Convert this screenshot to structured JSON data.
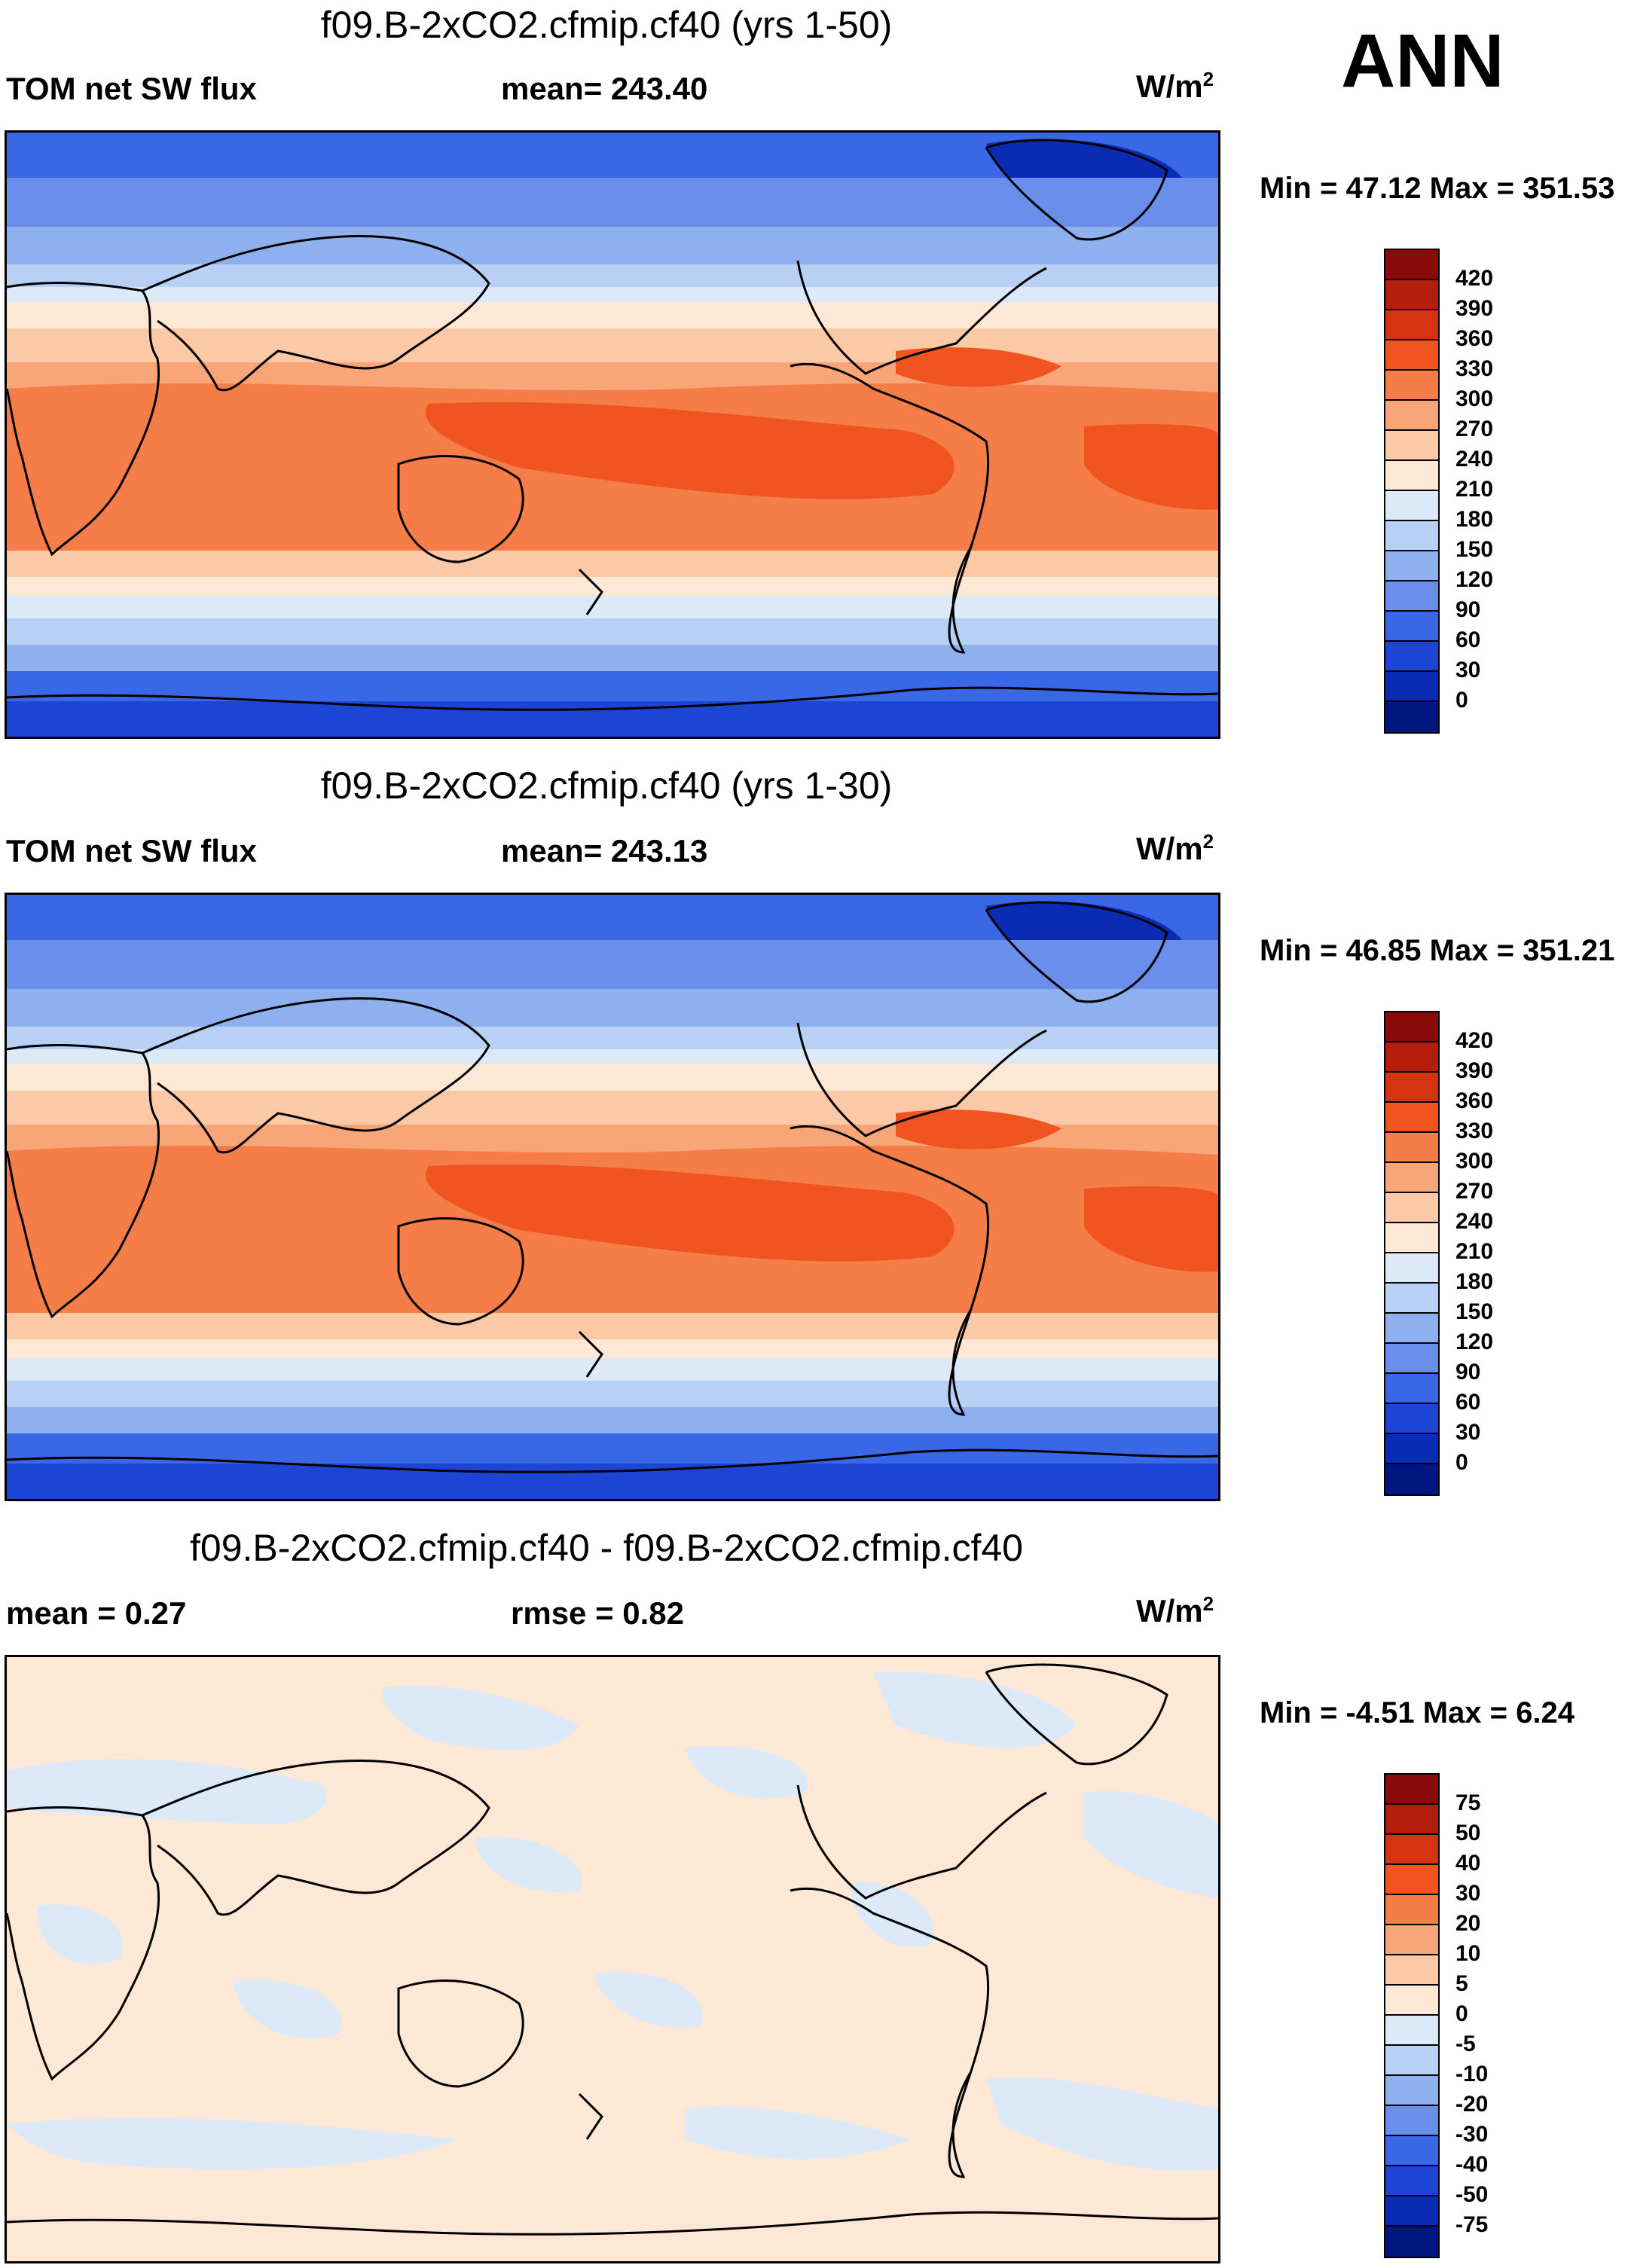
{
  "season": "ANN",
  "panels": [
    {
      "title": "f09.B-2xCO2.cfmip.cf40 (yrs 1-50)",
      "left_label": "TOM net SW flux",
      "mid_label": "mean= 243.40",
      "units": "W/m",
      "units_sup": "2",
      "minmax": "Min =  47.12 Max = 351.53"
    },
    {
      "title": "f09.B-2xCO2.cfmip.cf40 (yrs 1-30)",
      "left_label": "TOM net SW flux",
      "mid_label": "mean= 243.13",
      "units": "W/m",
      "units_sup": "2",
      "minmax": "Min =  46.85 Max = 351.21"
    },
    {
      "title": "f09.B-2xCO2.cfmip.cf40 - f09.B-2xCO2.cfmip.cf40",
      "left_label": "mean =   0.27",
      "mid_label": "rmse =   0.82",
      "units": "W/m",
      "units_sup": "2",
      "minmax": "Min =  -4.51 Max =   6.24"
    }
  ],
  "colorbars": {
    "absolute": {
      "labels": [
        "420",
        "390",
        "360",
        "330",
        "300",
        "270",
        "240",
        "210",
        "180",
        "150",
        "120",
        "90",
        "60",
        "30",
        "0"
      ],
      "colors": [
        "#8b0a0a",
        "#b51d0c",
        "#d63410",
        "#f0541f",
        "#f57d47",
        "#f8a578",
        "#fbc9a6",
        "#fde8d6",
        "#dbe9f8",
        "#b8d0f4",
        "#8fb0ee",
        "#6a8fea",
        "#3a67e6",
        "#1c45d4",
        "#0a2cb4",
        "#001680"
      ]
    },
    "difference": {
      "labels": [
        "75",
        "50",
        "40",
        "30",
        "20",
        "10",
        "5",
        "0",
        "-5",
        "-10",
        "-20",
        "-30",
        "-40",
        "-50",
        "-75"
      ],
      "colors": [
        "#8b0a0a",
        "#b51d0c",
        "#d63410",
        "#f0541f",
        "#f57d47",
        "#f8a578",
        "#fbc9a6",
        "#fde8d6",
        "#dbe9f8",
        "#b8d0f4",
        "#8fb0ee",
        "#6a8fea",
        "#3a67e6",
        "#1c45d4",
        "#0a2cb4",
        "#001680"
      ]
    }
  }
}
